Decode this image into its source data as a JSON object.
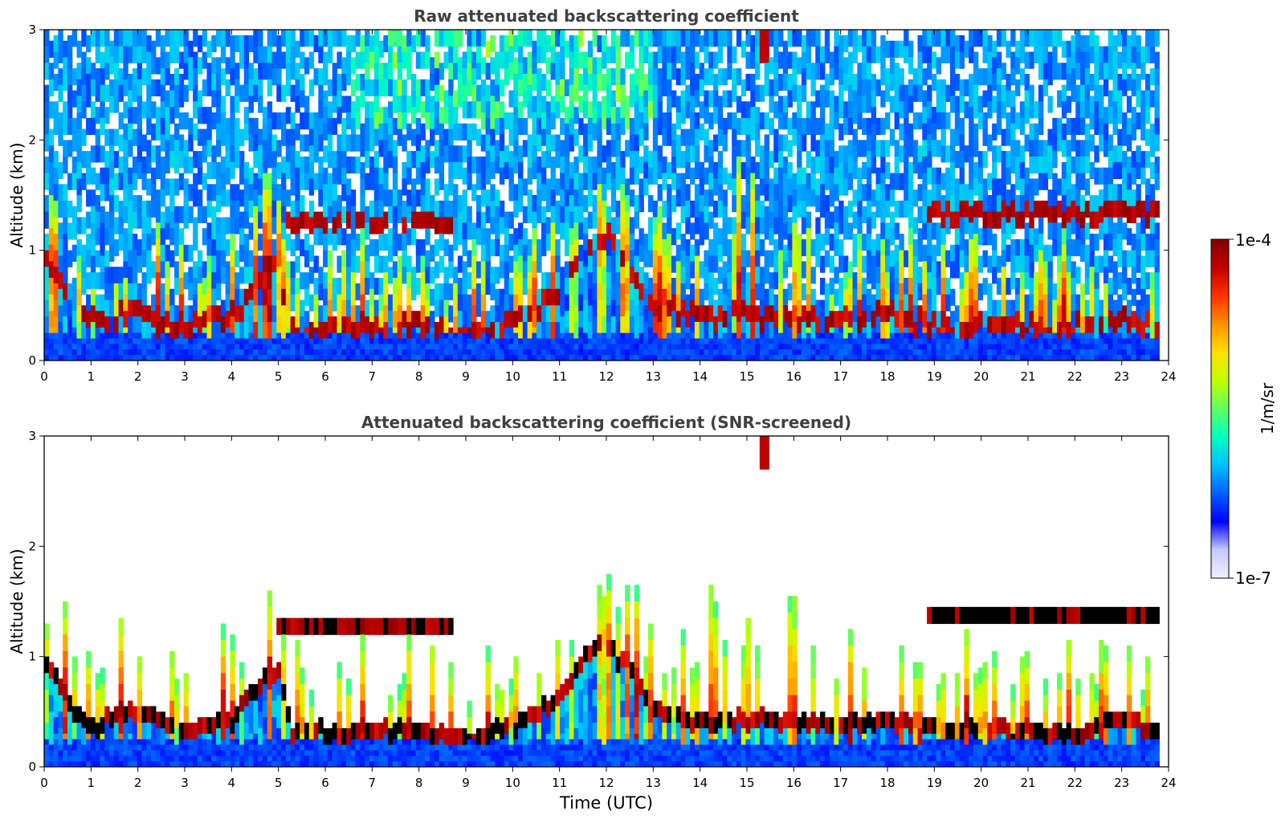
{
  "colors": {
    "background": "#ffffff",
    "axis": "#000000",
    "title_text": "#404040",
    "colormap": [
      "#f0f0ff",
      "#c8c8ff",
      "#0000ff",
      "#0060ff",
      "#00c0ff",
      "#00ffc0",
      "#60ff60",
      "#c0ff00",
      "#ffe000",
      "#ff9000",
      "#ff3000",
      "#c00000",
      "#800000"
    ],
    "black": "#000000",
    "white": "#ffffff"
  },
  "colorbar": {
    "label": "1/m/sr",
    "top_label": "1e-4",
    "bottom_label": "1e-7",
    "min": 1e-07,
    "max": 0.0001,
    "scale": "log"
  },
  "chart_data": [
    {
      "type": "heatmap",
      "title": "Raw attenuated backscattering coefficient",
      "xlabel": "",
      "ylabel": "Altitude (km)",
      "xlim": [
        0,
        24
      ],
      "ylim": [
        0,
        3
      ],
      "xticks": [
        "0",
        "1",
        "2",
        "3",
        "4",
        "5",
        "6",
        "7",
        "8",
        "9",
        "10",
        "11",
        "12",
        "13",
        "14",
        "15",
        "16",
        "17",
        "18",
        "19",
        "20",
        "21",
        "22",
        "23",
        "24"
      ],
      "yticks": [
        "0",
        "1",
        "2",
        "3"
      ],
      "screened": false,
      "data_end_hour": 23.8,
      "boundary_layer_top_km": [
        [
          0,
          1.05
        ],
        [
          0.5,
          0.6
        ],
        [
          1,
          0.4
        ],
        [
          2,
          0.5
        ],
        [
          3,
          0.35
        ],
        [
          4,
          0.45
        ],
        [
          4.5,
          0.7
        ],
        [
          5,
          0.9
        ],
        [
          5.3,
          0.32
        ],
        [
          6,
          0.33
        ],
        [
          7,
          0.35
        ],
        [
          8,
          0.35
        ],
        [
          9,
          0.25
        ],
        [
          10,
          0.4
        ],
        [
          10.5,
          0.5
        ],
        [
          11,
          0.65
        ],
        [
          11.5,
          1.0
        ],
        [
          12,
          1.15
        ],
        [
          12.5,
          0.9
        ],
        [
          13,
          0.55
        ],
        [
          14,
          0.42
        ],
        [
          15,
          0.45
        ],
        [
          16,
          0.42
        ],
        [
          17,
          0.4
        ],
        [
          18,
          0.45
        ],
        [
          18.6,
          0.4
        ],
        [
          19,
          0.35
        ],
        [
          20,
          0.35
        ],
        [
          21,
          0.35
        ],
        [
          22,
          0.32
        ],
        [
          23,
          0.45
        ],
        [
          23.8,
          0.35
        ]
      ],
      "cloud_layers": [
        {
          "start": 5.0,
          "end": 8.7,
          "altitude_km": 1.3
        },
        {
          "start": 18.8,
          "end": 23.8,
          "altitude_km": 1.38
        }
      ],
      "high_cloud": {
        "time": 15.4,
        "top_km": 3.0,
        "bottom_km": 2.7
      }
    },
    {
      "type": "heatmap",
      "title": "Attenuated backscattering coefficient (SNR-screened)",
      "xlabel": "Time (UTC)",
      "ylabel": "Altitude (km)",
      "xlim": [
        0,
        24
      ],
      "ylim": [
        0,
        3
      ],
      "xticks": [
        "0",
        "1",
        "2",
        "3",
        "4",
        "5",
        "6",
        "7",
        "8",
        "9",
        "10",
        "11",
        "12",
        "13",
        "14",
        "15",
        "16",
        "17",
        "18",
        "19",
        "20",
        "21",
        "22",
        "23",
        "24"
      ],
      "yticks": [
        "0",
        "1",
        "2",
        "3"
      ],
      "screened": true,
      "data_end_hour": 23.8,
      "boundary_layer_top_km": [
        [
          0,
          1.05
        ],
        [
          0.5,
          0.6
        ],
        [
          1,
          0.4
        ],
        [
          2,
          0.5
        ],
        [
          3,
          0.35
        ],
        [
          4,
          0.45
        ],
        [
          4.5,
          0.7
        ],
        [
          5,
          0.9
        ],
        [
          5.3,
          0.32
        ],
        [
          6,
          0.33
        ],
        [
          7,
          0.35
        ],
        [
          8,
          0.35
        ],
        [
          9,
          0.25
        ],
        [
          10,
          0.4
        ],
        [
          10.5,
          0.5
        ],
        [
          11,
          0.65
        ],
        [
          11.5,
          1.0
        ],
        [
          12,
          1.15
        ],
        [
          12.5,
          0.9
        ],
        [
          13,
          0.55
        ],
        [
          14,
          0.42
        ],
        [
          15,
          0.45
        ],
        [
          16,
          0.42
        ],
        [
          17,
          0.4
        ],
        [
          18,
          0.45
        ],
        [
          18.6,
          0.4
        ],
        [
          19,
          0.35
        ],
        [
          20,
          0.35
        ],
        [
          21,
          0.35
        ],
        [
          22,
          0.32
        ],
        [
          23,
          0.45
        ],
        [
          23.8,
          0.35
        ]
      ],
      "cloud_layers": [
        {
          "start": 5.0,
          "end": 8.7,
          "altitude_km": 1.3
        },
        {
          "start": 18.8,
          "end": 23.8,
          "altitude_km": 1.38
        }
      ],
      "high_cloud": {
        "time": 15.4,
        "top_km": 3.0,
        "bottom_km": 2.7
      }
    }
  ]
}
